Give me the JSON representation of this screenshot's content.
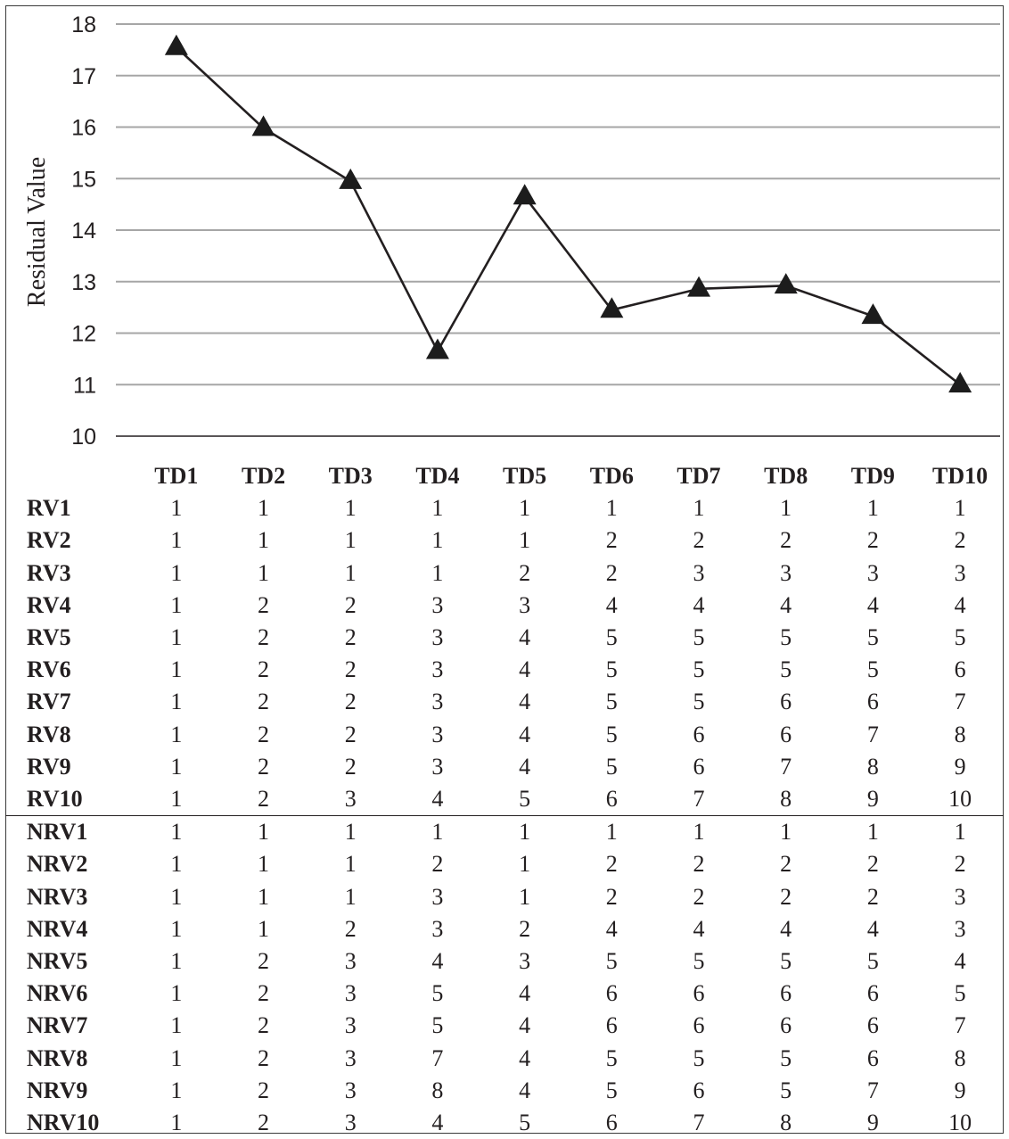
{
  "chart_data": {
    "type": "line",
    "ylabel": "Residual Value",
    "xlabel": "",
    "ylim": [
      10,
      18
    ],
    "yticks": [
      10,
      11,
      12,
      13,
      14,
      15,
      16,
      17,
      18
    ],
    "grid": true,
    "marker": "triangle",
    "line_color": "#231f20",
    "grid_color": "#a6a6a6",
    "categories": [
      "TD1",
      "TD2",
      "TD3",
      "TD4",
      "TD5",
      "TD6",
      "TD7",
      "TD8",
      "TD9",
      "TD10"
    ],
    "series": [
      {
        "values": [
          17.55,
          15.98,
          14.95,
          11.65,
          14.65,
          12.45,
          12.86,
          12.92,
          12.33,
          11.0
        ]
      }
    ]
  },
  "table": {
    "columns": [
      "TD1",
      "TD2",
      "TD3",
      "TD4",
      "TD5",
      "TD6",
      "TD7",
      "TD8",
      "TD9",
      "TD10"
    ],
    "rows": [
      {
        "label": "RV1",
        "values": [
          "1",
          "1",
          "1",
          "1",
          "1",
          "1",
          "1",
          "1",
          "1",
          "1"
        ]
      },
      {
        "label": "RV2",
        "values": [
          "1",
          "1",
          "1",
          "1",
          "1",
          "2",
          "2",
          "2",
          "2",
          "2"
        ]
      },
      {
        "label": "RV3",
        "values": [
          "1",
          "1",
          "1",
          "1",
          "2",
          "2",
          "3",
          "3",
          "3",
          "3"
        ]
      },
      {
        "label": "RV4",
        "values": [
          "1",
          "2",
          "2",
          "3",
          "3",
          "4",
          "4",
          "4",
          "4",
          "4"
        ]
      },
      {
        "label": "RV5",
        "values": [
          "1",
          "2",
          "2",
          "3",
          "4",
          "5",
          "5",
          "5",
          "5",
          "5"
        ]
      },
      {
        "label": "RV6",
        "values": [
          "1",
          "2",
          "2",
          "3",
          "4",
          "5",
          "5",
          "5",
          "5",
          "6"
        ]
      },
      {
        "label": "RV7",
        "values": [
          "1",
          "2",
          "2",
          "3",
          "4",
          "5",
          "5",
          "6",
          "6",
          "7"
        ]
      },
      {
        "label": "RV8",
        "values": [
          "1",
          "2",
          "2",
          "3",
          "4",
          "5",
          "6",
          "6",
          "7",
          "8"
        ]
      },
      {
        "label": "RV9",
        "values": [
          "1",
          "2",
          "2",
          "3",
          "4",
          "5",
          "6",
          "7",
          "8",
          "9"
        ]
      },
      {
        "label": "RV10",
        "values": [
          "1",
          "2",
          "3",
          "4",
          "5",
          "6",
          "7",
          "8",
          "9",
          "10"
        ]
      },
      {
        "label": "NRV1",
        "values": [
          "1",
          "1",
          "1",
          "1",
          "1",
          "1",
          "1",
          "1",
          "1",
          "1"
        ]
      },
      {
        "label": "NRV2",
        "values": [
          "1",
          "1",
          "1",
          "2",
          "1",
          "2",
          "2",
          "2",
          "2",
          "2"
        ]
      },
      {
        "label": "NRV3",
        "values": [
          "1",
          "1",
          "1",
          "3",
          "1",
          "2",
          "2",
          "2",
          "2",
          "3"
        ]
      },
      {
        "label": "NRV4",
        "values": [
          "1",
          "1",
          "2",
          "3",
          "2",
          "4",
          "4",
          "4",
          "4",
          "3"
        ]
      },
      {
        "label": "NRV5",
        "values": [
          "1",
          "2",
          "3",
          "4",
          "3",
          "5",
          "5",
          "5",
          "5",
          "4"
        ]
      },
      {
        "label": "NRV6",
        "values": [
          "1",
          "2",
          "3",
          "5",
          "4",
          "6",
          "6",
          "6",
          "6",
          "5"
        ]
      },
      {
        "label": "NRV7",
        "values": [
          "1",
          "2",
          "3",
          "5",
          "4",
          "6",
          "6",
          "6",
          "6",
          "7"
        ]
      },
      {
        "label": "NRV8",
        "values": [
          "1",
          "2",
          "3",
          "7",
          "4",
          "5",
          "5",
          "5",
          "6",
          "8"
        ]
      },
      {
        "label": "NRV9",
        "values": [
          "1",
          "2",
          "3",
          "8",
          "4",
          "5",
          "6",
          "5",
          "7",
          "9"
        ]
      },
      {
        "label": "NRV10",
        "values": [
          "1",
          "2",
          "3",
          "4",
          "5",
          "6",
          "7",
          "8",
          "9",
          "10"
        ]
      }
    ]
  }
}
